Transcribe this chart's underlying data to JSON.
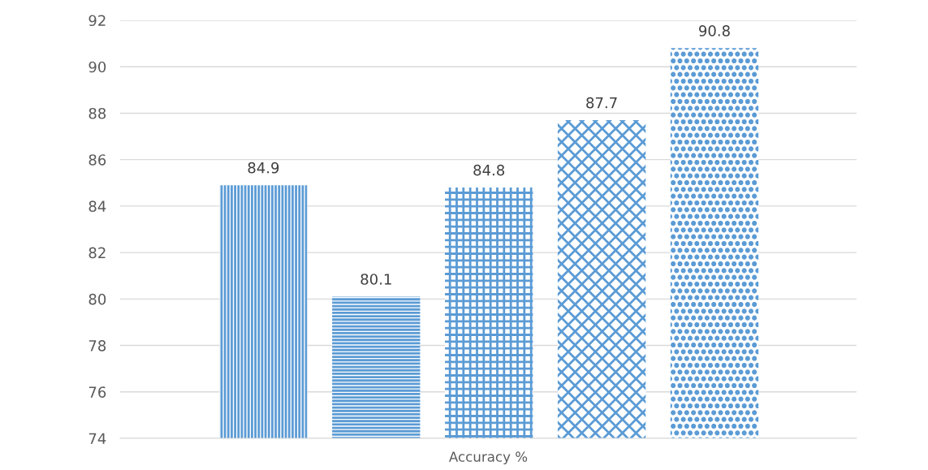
{
  "chart_data": {
    "type": "bar",
    "xlabel": "Accuracy %",
    "categories": [
      null,
      null,
      null,
      null,
      null
    ],
    "values": [
      84.9,
      80.1,
      84.8,
      87.7,
      90.8
    ],
    "color": "#5b9bd5",
    "ylim": [
      74,
      92
    ],
    "yticks": [
      74,
      76,
      78,
      80,
      82,
      84,
      86,
      88,
      90,
      92
    ],
    "grid": "y",
    "data_labels": true
  }
}
